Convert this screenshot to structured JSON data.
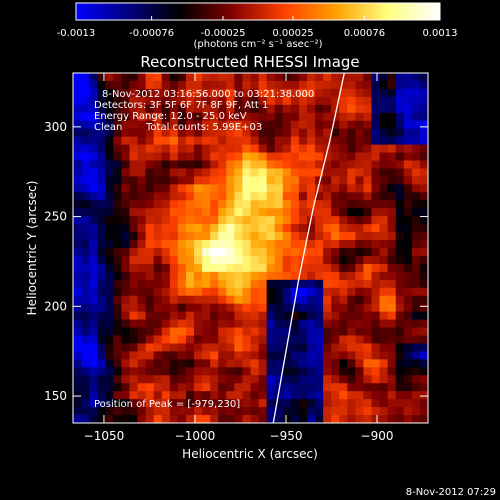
{
  "chart_data": {
    "type": "heatmap",
    "title": "Reconstructed RHESSI Image",
    "xlabel": "Heliocentric X (arcsec)",
    "ylabel": "Heliocentric Y (arcsec)",
    "xlim": [
      -1067,
      -872
    ],
    "ylim": [
      135,
      330
    ],
    "xticks": [
      -1050,
      -1000,
      -950,
      -900
    ],
    "yticks": [
      150,
      200,
      250,
      300
    ],
    "colorbar": {
      "min": -0.0013,
      "max": 0.0013,
      "ticks": [
        "-0.0013",
        "-0.00076",
        "-0.00025",
        "0.00025",
        "0.00076",
        "0.0013"
      ],
      "units": "(photons cm⁻² s⁻¹ asec⁻²)",
      "colormap": [
        "#0000ff",
        "#000080",
        "#000000",
        "#800000",
        "#ff4000",
        "#ffa000",
        "#ffff80",
        "#ffffff"
      ]
    },
    "annotations": {
      "time_range": "8-Nov-2012 03:16:56.000 to 03:21:38.000",
      "detectors": "Detectors: 3F 5F 6F 7F 8F 9F, Att 1",
      "energy_range": "Energy Range: 12.0 - 25.0 keV",
      "method": "Clean",
      "total_counts": "Total counts: 5.99E+03",
      "peak_position": "Position of Peak = [-979,230]"
    },
    "peak": {
      "x": -979,
      "y": 230
    },
    "limb": [
      {
        "x": -957,
        "y": 135
      },
      {
        "x": -950,
        "y": 175
      },
      {
        "x": -943,
        "y": 215
      },
      {
        "x": -935,
        "y": 255
      },
      {
        "x": -926,
        "y": 292
      },
      {
        "x": -918,
        "y": 330
      }
    ]
  },
  "footer_timestamp": "8-Nov-2012 07:29"
}
